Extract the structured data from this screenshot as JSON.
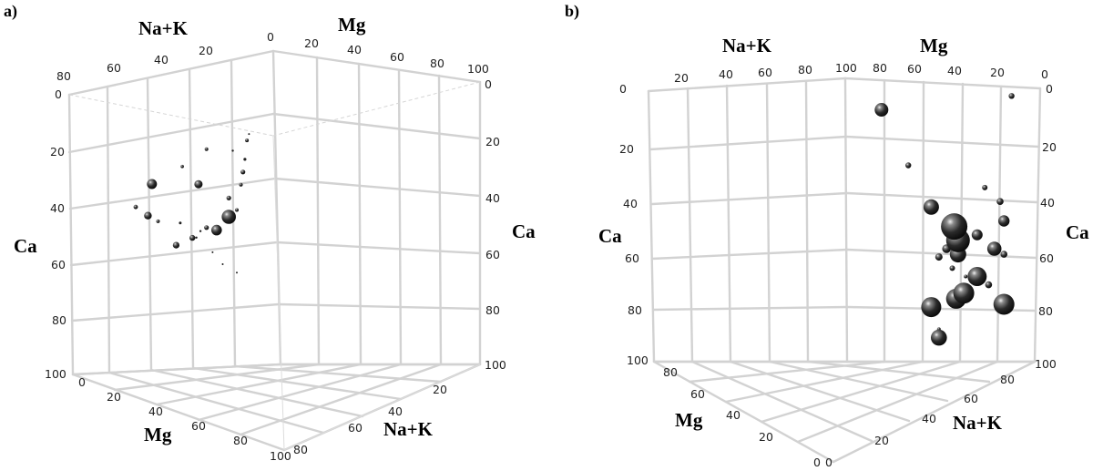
{
  "chart_data": [
    {
      "type": "scatter",
      "panel": "a)",
      "axes": {
        "ca": "Ca",
        "mg": "Mg",
        "nak": "Na+K"
      },
      "ticks": [
        "0",
        "20",
        "40",
        "60",
        "80",
        "100"
      ],
      "marker_color": "#222222",
      "points": [
        {
          "ca": 47,
          "nak": 68,
          "size": 2.4
        },
        {
          "ca": 35,
          "nak": 45,
          "size": 1.8
        },
        {
          "ca": 41,
          "nak": 37,
          "size": 4.5
        },
        {
          "ca": 30,
          "nak": 33,
          "size": 2.0
        },
        {
          "ca": 26,
          "nak": 12,
          "size": 1.0
        },
        {
          "ca": 40,
          "nak": 60,
          "size": 5.5
        },
        {
          "ca": 50,
          "nak": 62,
          "size": 4.2
        },
        {
          "ca": 52,
          "nak": 57,
          "size": 2.0
        },
        {
          "ca": 60,
          "nak": 48,
          "size": 3.6
        },
        {
          "ca": 53,
          "nak": 46,
          "size": 1.5
        },
        {
          "ca": 58,
          "nak": 40,
          "size": 3.2
        },
        {
          "ca": 56,
          "nak": 28,
          "size": 5.8
        },
        {
          "ca": 46,
          "nak": 22,
          "size": 2.6
        },
        {
          "ca": 50,
          "nak": 18,
          "size": 2.0
        },
        {
          "ca": 42,
          "nak": 16,
          "size": 2.0
        },
        {
          "ca": 38,
          "nak": 15,
          "size": 2.6
        },
        {
          "ca": 34,
          "nak": 14,
          "size": 1.6
        },
        {
          "ca": 31,
          "nak": 20,
          "size": 1.2
        },
        {
          "ca": 28,
          "nak": 13,
          "size": 2.0
        },
        {
          "ca": 52,
          "nak": 22,
          "size": 7.8
        },
        {
          "ca": 55,
          "nak": 33,
          "size": 2.6
        },
        {
          "ca": 56,
          "nak": 36,
          "size": 1.2
        },
        {
          "ca": 58,
          "nak": 38,
          "size": 1.2
        },
        {
          "ca": 63,
          "nak": 30,
          "size": 1.0
        },
        {
          "ca": 67,
          "nak": 25,
          "size": 1.0
        },
        {
          "ca": 70,
          "nak": 18,
          "size": 1.0
        }
      ]
    },
    {
      "type": "scatter",
      "panel": "b)",
      "axes": {
        "ca": "Ca",
        "mg": "Mg",
        "nak": "Na+K"
      },
      "ticks": [
        "0",
        "20",
        "40",
        "60",
        "80",
        "100"
      ],
      "marker_color": "#222222",
      "points": [
        {
          "ca": 10,
          "mg": 82,
          "size": 7.5
        },
        {
          "ca": 5,
          "mg": 14,
          "size": 3.2
        },
        {
          "ca": 30,
          "mg": 68,
          "size": 3.2
        },
        {
          "ca": 38,
          "mg": 28,
          "size": 3.0
        },
        {
          "ca": 43,
          "mg": 20,
          "size": 3.8
        },
        {
          "ca": 45,
          "mg": 56,
          "size": 8.5
        },
        {
          "ca": 50,
          "mg": 18,
          "size": 6.2
        },
        {
          "ca": 55,
          "mg": 32,
          "size": 6.0
        },
        {
          "ca": 52,
          "mg": 44,
          "size": 14.5
        },
        {
          "ca": 57,
          "mg": 42,
          "size": 13.0
        },
        {
          "ca": 62,
          "mg": 42,
          "size": 9.0
        },
        {
          "ca": 60,
          "mg": 48,
          "size": 4.8
        },
        {
          "ca": 63,
          "mg": 52,
          "size": 4.0
        },
        {
          "ca": 67,
          "mg": 45,
          "size": 3.0
        },
        {
          "ca": 60,
          "mg": 23,
          "size": 7.8
        },
        {
          "ca": 62,
          "mg": 18,
          "size": 3.8
        },
        {
          "ca": 70,
          "mg": 32,
          "size": 10.5
        },
        {
          "ca": 70,
          "mg": 38,
          "size": 2.0
        },
        {
          "ca": 73,
          "mg": 26,
          "size": 3.8
        },
        {
          "ca": 76,
          "mg": 39,
          "size": 11.5
        },
        {
          "ca": 78,
          "mg": 43,
          "size": 11.0
        },
        {
          "ca": 80,
          "mg": 18,
          "size": 11.5
        },
        {
          "ca": 81,
          "mg": 56,
          "size": 11.0
        },
        {
          "ca": 83,
          "mg": 57,
          "size": 2.2
        },
        {
          "ca": 89,
          "mg": 52,
          "size": 2.0
        },
        {
          "ca": 92,
          "mg": 52,
          "size": 8.8
        }
      ]
    }
  ]
}
